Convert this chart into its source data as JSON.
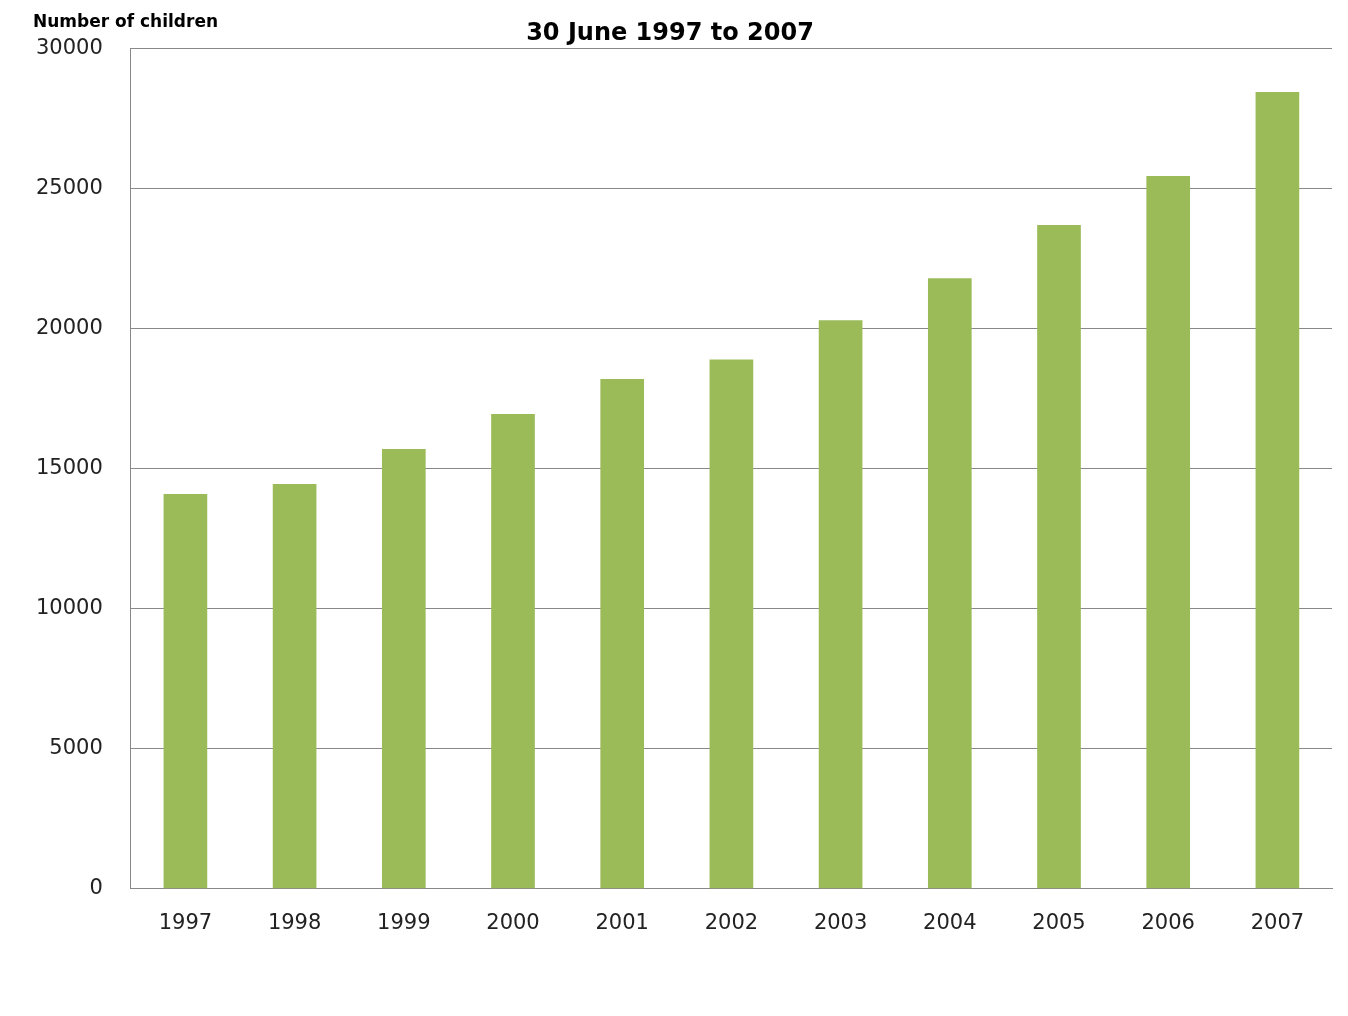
{
  "chart_data": {
    "type": "bar",
    "title": "30 June 1997 to 2007",
    "ylabel": "Number of children",
    "categories": [
      "1997",
      "1998",
      "1999",
      "2000",
      "2001",
      "2002",
      "2003",
      "2004",
      "2005",
      "2006",
      "2007"
    ],
    "values": [
      14100,
      14450,
      15700,
      16950,
      18200,
      18900,
      20300,
      21800,
      23700,
      25450,
      28450
    ],
    "color": "#9bbb59",
    "ylim": [
      0,
      30000
    ],
    "yticks": [
      0,
      5000,
      10000,
      15000,
      20000,
      25000,
      30000
    ],
    "grid": "y",
    "legend": false
  }
}
